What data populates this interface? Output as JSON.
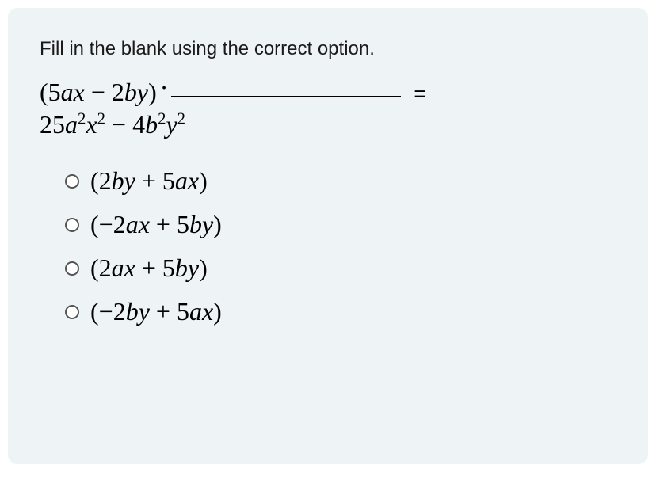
{
  "instruction": "Fill in the blank using the correct option.",
  "expression": {
    "factor1_html": "(5<span class='italic'>ax</span> − 2<span class='italic'>by</span>)",
    "equals": "=",
    "result_html": "25<span class='italic'>a</span><sup>2</sup><span class='italic'>x</span><sup>2</sup> − 4<span class='italic'>b</span><sup>2</sup><span class='italic'>y</span><sup>2</sup>"
  },
  "options": [
    {
      "html": "(2<span class='italic'>by</span> + 5<span class='italic'>ax</span>)"
    },
    {
      "html": "(−2<span class='italic'>ax</span> + 5<span class='italic'>by</span>)"
    },
    {
      "html": "(2<span class='italic'>ax</span> + 5<span class='italic'>by</span>)"
    },
    {
      "html": "(−2<span class='italic'>by</span> + 5<span class='italic'>ax</span>)"
    }
  ],
  "colors": {
    "background": "#eef3f6",
    "text": "#000000",
    "instruction": "#1a1a1a",
    "radio_border": "#555555"
  }
}
